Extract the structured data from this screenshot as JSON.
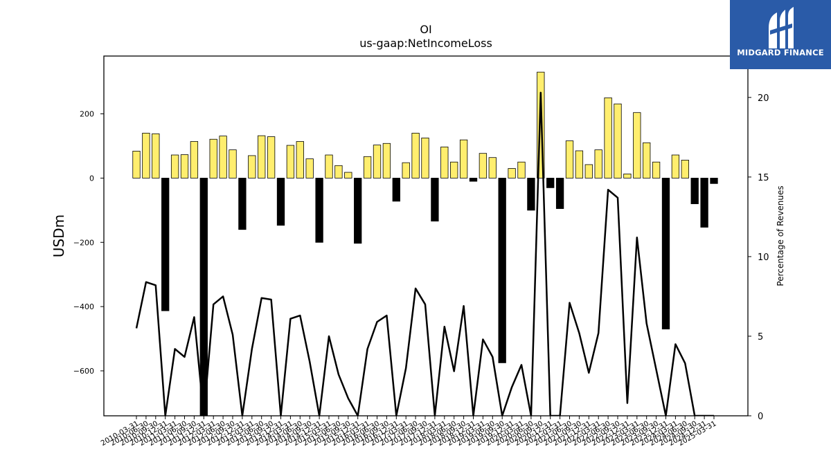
{
  "chart_data": {
    "type": "bar+line",
    "title": "OI",
    "subtitle": "us-gaap:NetIncomeLoss",
    "ylabel": "USDm",
    "y2label": "Percentage of Revenues",
    "ylim": [
      -740,
      380
    ],
    "y2lim": [
      0,
      22.6
    ],
    "yticks": [
      -600,
      -400,
      -200,
      0,
      200
    ],
    "y2ticks": [
      0,
      5,
      10,
      15,
      20
    ],
    "grid": false,
    "colors": {
      "positive": "#ffee6e",
      "negative": "#000000",
      "line": "#000000"
    },
    "categories": [
      "2010-03-31",
      "2010-06-30",
      "2010-09-30",
      "2010-12-31",
      "2011-03-31",
      "2011-06-30",
      "2011-09-30",
      "2011-12-31",
      "2012-03-31",
      "2012-06-30",
      "2012-09-30",
      "2012-12-31",
      "2013-03-31",
      "2013-06-30",
      "2013-09-30",
      "2013-12-31",
      "2014-03-31",
      "2014-06-30",
      "2014-09-30",
      "2014-12-31",
      "2015-03-31",
      "2015-06-30",
      "2015-09-30",
      "2015-12-31",
      "2016-03-31",
      "2016-06-30",
      "2016-09-30",
      "2016-12-31",
      "2017-03-31",
      "2017-06-30",
      "2017-09-30",
      "2017-12-31",
      "2018-03-31",
      "2018-06-30",
      "2018-09-30",
      "2018-12-31",
      "2019-03-31",
      "2019-06-30",
      "2019-09-30",
      "2019-12-31",
      "2020-03-31",
      "2020-06-30",
      "2020-09-30",
      "2020-12-31",
      "2021-03-31",
      "2021-06-30",
      "2021-09-30",
      "2021-12-31",
      "2022-03-31",
      "2022-06-30",
      "2022-09-30",
      "2022-12-31",
      "2023-03-31",
      "2023-06-30",
      "2023-09-30",
      "2023-12-31",
      "2024-03-31",
      "2024-06-30",
      "2024-09-30",
      "2024-12-31",
      "2025-03-31"
    ],
    "series": [
      {
        "kind": "bar",
        "values": [
          84,
          140,
          138,
          -413,
          72,
          73,
          114,
          -740,
          121,
          131,
          88,
          -160,
          70,
          132,
          129,
          -147,
          102,
          114,
          60,
          -200,
          72,
          39,
          18,
          -203,
          67,
          103,
          108,
          -72,
          48,
          140,
          125,
          -134,
          97,
          50,
          119,
          -10,
          77,
          64,
          -575,
          30,
          50,
          -100,
          330,
          -30,
          -95,
          116,
          85,
          42,
          88,
          250,
          231,
          13,
          204,
          110,
          50,
          -470,
          72,
          56,
          -80,
          -153,
          -17
        ]
      },
      {
        "kind": "line",
        "axis": "y2",
        "values": [
          5.5,
          8.4,
          8.2,
          0.0,
          4.2,
          3.7,
          6.2,
          0.0,
          7.0,
          7.5,
          5.1,
          0.0,
          4.2,
          7.4,
          7.3,
          0.0,
          6.1,
          6.3,
          3.4,
          0.0,
          5.0,
          2.6,
          1.1,
          0.0,
          4.2,
          5.9,
          6.3,
          0.0,
          3.0,
          8.0,
          7.0,
          0.0,
          5.6,
          2.8,
          6.9,
          0.0,
          4.8,
          3.7,
          0.0,
          1.8,
          3.2,
          0.0,
          20.3,
          0.0,
          0.0,
          7.1,
          5.2,
          2.7,
          5.2,
          14.2,
          13.7,
          0.8,
          11.2,
          5.8,
          2.9,
          0.0,
          4.5,
          3.3,
          0.0,
          0.0,
          0.0
        ]
      }
    ]
  },
  "logo": {
    "name": "midgard-logo",
    "text": "MIDGARD FINANCE"
  }
}
